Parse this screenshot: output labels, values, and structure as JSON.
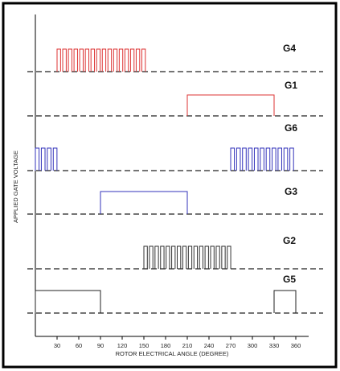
{
  "chart_data": {
    "type": "line",
    "xlabel": "ROTOR ELECTRICAL ANGLE (DEGREE)",
    "ylabel": "APPLIED GATE VOLTAGE",
    "xlim": [
      0,
      375
    ],
    "xticks": [
      30,
      60,
      90,
      120,
      150,
      180,
      210,
      240,
      270,
      300,
      330,
      360
    ],
    "series": [
      {
        "name": "G4",
        "color": "#dd3333",
        "segments": [
          {
            "type": "pwm",
            "start": 30,
            "end": 155,
            "pulses": 16
          }
        ]
      },
      {
        "name": "G1",
        "color": "#dd3333",
        "segments": [
          {
            "type": "high",
            "start": 210,
            "end": 330
          }
        ]
      },
      {
        "name": "G6",
        "color": "#3333bb",
        "segments": [
          {
            "type": "pwm",
            "start": 0,
            "end": 33,
            "pulses": 4
          },
          {
            "type": "pwm",
            "start": 270,
            "end": 360,
            "pulses": 11
          }
        ]
      },
      {
        "name": "G3",
        "color": "#3333bb",
        "segments": [
          {
            "type": "high",
            "start": 90,
            "end": 210
          }
        ]
      },
      {
        "name": "G2",
        "color": "#333333",
        "segments": [
          {
            "type": "pwm",
            "start": 150,
            "end": 273,
            "pulses": 16
          }
        ]
      },
      {
        "name": "G5",
        "color": "#222222",
        "segments": [
          {
            "type": "high",
            "start": 0,
            "end": 90
          },
          {
            "type": "high",
            "start": 330,
            "end": 360
          }
        ]
      }
    ]
  }
}
